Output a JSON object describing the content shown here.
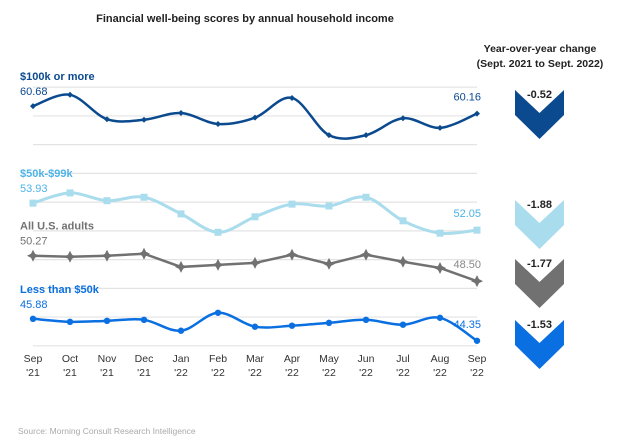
{
  "chart_data": {
    "type": "line",
    "title": "Financial well-being scores by annual household income",
    "xlabel": "",
    "ylabel": "",
    "ylim": [
      43.5,
      62.5
    ],
    "grid": true,
    "categories": [
      [
        "Sep",
        "'21"
      ],
      [
        "Oct",
        "'21"
      ],
      [
        "Nov",
        "'21"
      ],
      [
        "Dec",
        "'21"
      ],
      [
        "Jan",
        "'22"
      ],
      [
        "Feb",
        "'22"
      ],
      [
        "Mar",
        "'22"
      ],
      [
        "Apr",
        "'22"
      ],
      [
        "May",
        "'22"
      ],
      [
        "Jun",
        "'22"
      ],
      [
        "Jul",
        "'22"
      ],
      [
        "Aug",
        "'22"
      ],
      [
        "Sep",
        "'22"
      ]
    ],
    "series": [
      {
        "name": "$100k or more",
        "color": "#0b4a8f",
        "marker": "diamond",
        "smooth": true,
        "start_label": "60.68",
        "end_label": "60.16",
        "values": [
          60.68,
          61.47,
          59.77,
          59.73,
          60.2,
          59.44,
          59.88,
          61.25,
          58.66,
          58.66,
          59.84,
          59.17,
          60.16
        ]
      },
      {
        "name": "$50k-$99k",
        "color": "#a9dcec",
        "marker": "square",
        "smooth": true,
        "start_label": "53.93",
        "end_label": "52.05",
        "values": [
          53.93,
          54.64,
          54.1,
          54.34,
          53.18,
          51.9,
          52.98,
          53.86,
          53.73,
          54.34,
          52.7,
          51.84,
          52.05
        ]
      },
      {
        "name": "All U.S. adults",
        "color": "#717171",
        "marker": "star",
        "smooth": false,
        "start_label": "50.27",
        "end_label": "48.50",
        "values": [
          50.27,
          50.2,
          50.27,
          50.41,
          49.49,
          49.63,
          49.77,
          50.34,
          49.7,
          50.34,
          49.85,
          49.42,
          48.5
        ]
      },
      {
        "name": "Less than $50k",
        "color": "#0a6fe0",
        "marker": "circle",
        "smooth": true,
        "start_label": "45.88",
        "end_label": "44.35",
        "values": [
          45.88,
          45.67,
          45.74,
          45.81,
          45.05,
          46.3,
          45.33,
          45.4,
          45.6,
          45.81,
          45.47,
          45.95,
          44.35
        ]
      }
    ],
    "yoy": {
      "title_line1": "Year-over-year change",
      "title_line2": "(Sept. 2021 to Sept. 2022)",
      "values": [
        "-0.52",
        "-1.88",
        "-1.77",
        "-1.53"
      ]
    },
    "source": "Source: Morning Consult Research Intelligence"
  }
}
